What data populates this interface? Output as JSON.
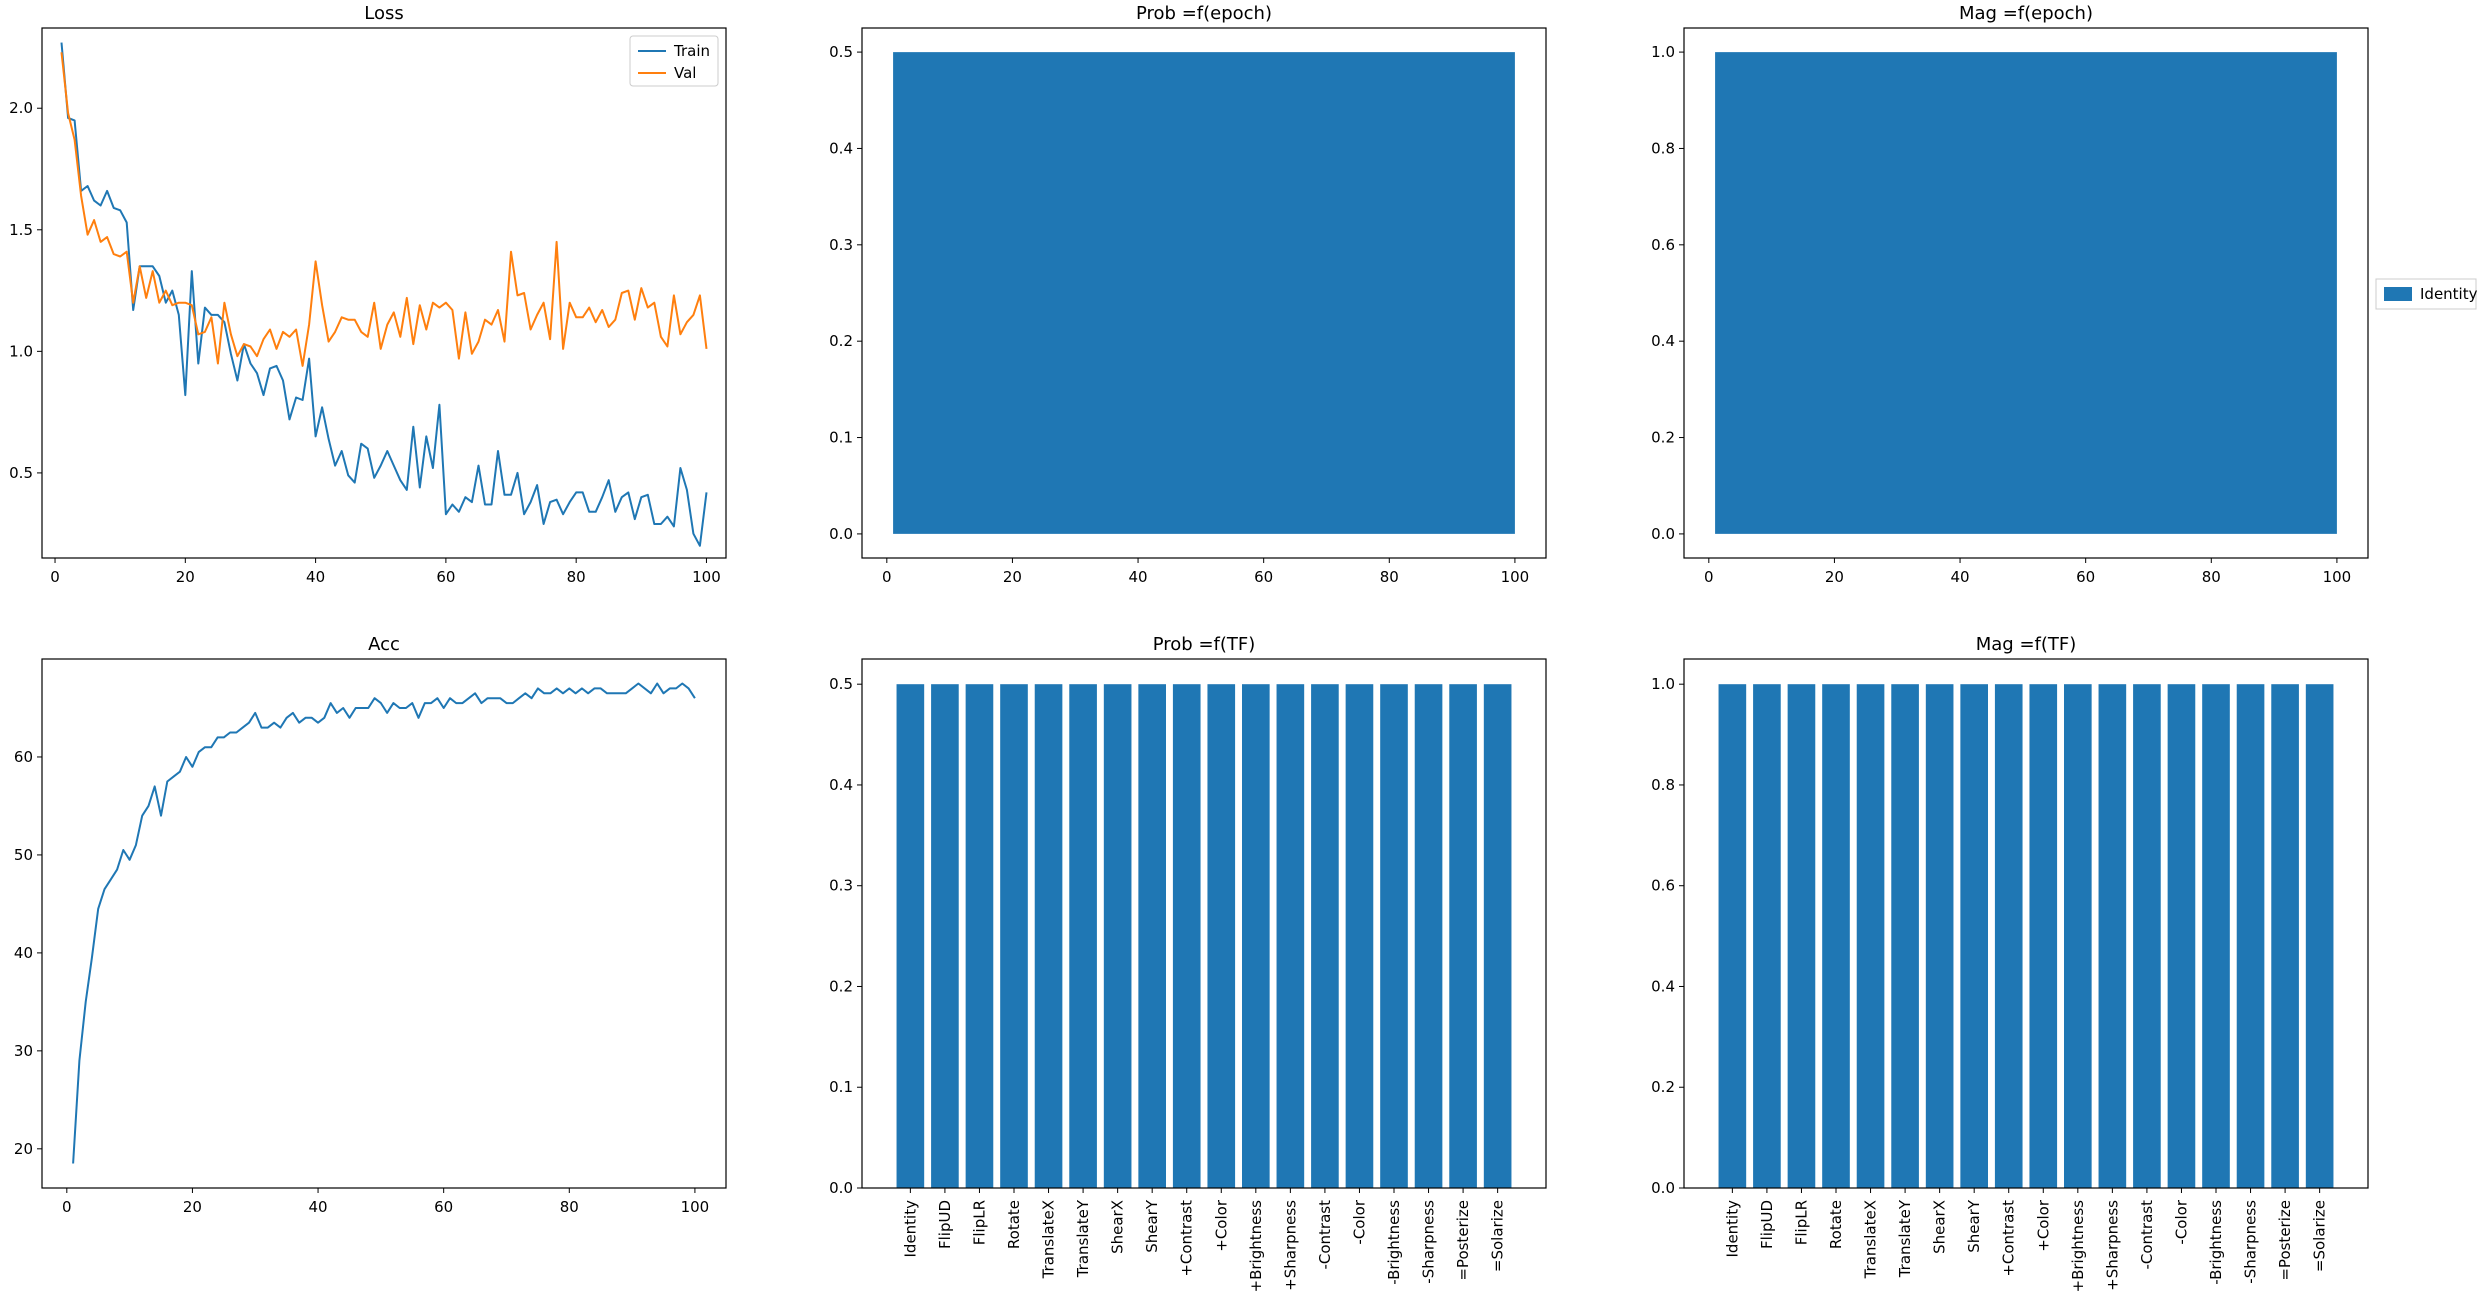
{
  "colors": {
    "blue": "#1f77b4",
    "orange": "#ff7f0e"
  },
  "legend_outside": {
    "label": "Identity",
    "color": "#1f77b4",
    "placement": "right"
  },
  "chart_data": [
    {
      "id": "loss",
      "type": "line",
      "title": "Loss",
      "xlim": [
        -2,
        103
      ],
      "ylim": [
        0.15,
        2.33
      ],
      "xticks": [
        0,
        20,
        40,
        60,
        80,
        100
      ],
      "yticks": [
        0.5,
        1.0,
        1.5,
        2.0
      ],
      "yformat": "fixed1",
      "legend": "top-right",
      "series": [
        {
          "name": "Train",
          "color": "#1f77b4",
          "x": [
            1,
            2,
            3,
            4,
            5,
            6,
            7,
            8,
            9,
            10,
            11,
            12,
            13,
            14,
            15,
            16,
            17,
            18,
            19,
            20,
            21,
            22,
            23,
            24,
            25,
            26,
            27,
            28,
            29,
            30,
            31,
            32,
            33,
            34,
            35,
            36,
            37,
            38,
            39,
            40,
            41,
            42,
            43,
            44,
            45,
            46,
            47,
            48,
            49,
            50,
            51,
            52,
            53,
            54,
            55,
            56,
            57,
            58,
            59,
            60,
            61,
            62,
            63,
            64,
            65,
            66,
            67,
            68,
            69,
            70,
            71,
            72,
            73,
            74,
            75,
            76,
            77,
            78,
            79,
            80,
            81,
            82,
            83,
            84,
            85,
            86,
            87,
            88,
            89,
            90,
            91,
            92,
            93,
            94,
            95,
            96,
            97,
            98,
            99,
            100
          ],
          "values": [
            2.27,
            1.96,
            1.95,
            1.66,
            1.68,
            1.62,
            1.6,
            1.66,
            1.59,
            1.58,
            1.53,
            1.17,
            1.35,
            1.35,
            1.35,
            1.31,
            1.2,
            1.25,
            1.15,
            0.82,
            1.33,
            0.95,
            1.18,
            1.15,
            1.15,
            1.12,
            0.99,
            0.88,
            1.03,
            0.95,
            0.91,
            0.82,
            0.93,
            0.94,
            0.88,
            0.72,
            0.81,
            0.8,
            0.97,
            0.65,
            0.77,
            0.64,
            0.53,
            0.59,
            0.49,
            0.46,
            0.62,
            0.6,
            0.48,
            0.53,
            0.59,
            0.53,
            0.47,
            0.43,
            0.69,
            0.44,
            0.65,
            0.52,
            0.78,
            0.33,
            0.37,
            0.34,
            0.4,
            0.38,
            0.53,
            0.37,
            0.37,
            0.59,
            0.41,
            0.41,
            0.5,
            0.33,
            0.38,
            0.45,
            0.29,
            0.38,
            0.39,
            0.33,
            0.38,
            0.42,
            0.42,
            0.34,
            0.34,
            0.4,
            0.47,
            0.34,
            0.4,
            0.42,
            0.31,
            0.4,
            0.41,
            0.29,
            0.29,
            0.32,
            0.28,
            0.52,
            0.43,
            0.25,
            0.2,
            0.42
          ]
        },
        {
          "name": "Val",
          "color": "#ff7f0e",
          "x": [
            1,
            2,
            3,
            4,
            5,
            6,
            7,
            8,
            9,
            10,
            11,
            12,
            13,
            14,
            15,
            16,
            17,
            18,
            19,
            20,
            21,
            22,
            23,
            24,
            25,
            26,
            27,
            28,
            29,
            30,
            31,
            32,
            33,
            34,
            35,
            36,
            37,
            38,
            39,
            40,
            41,
            42,
            43,
            44,
            45,
            46,
            47,
            48,
            49,
            50,
            51,
            52,
            53,
            54,
            55,
            56,
            57,
            58,
            59,
            60,
            61,
            62,
            63,
            64,
            65,
            66,
            67,
            68,
            69,
            70,
            71,
            72,
            73,
            74,
            75,
            76,
            77,
            78,
            79,
            80,
            81,
            82,
            83,
            84,
            85,
            86,
            87,
            88,
            89,
            90,
            91,
            92,
            93,
            94,
            95,
            96,
            97,
            98,
            99,
            100
          ],
          "values": [
            2.23,
            1.98,
            1.87,
            1.64,
            1.48,
            1.54,
            1.45,
            1.47,
            1.4,
            1.39,
            1.41,
            1.2,
            1.35,
            1.22,
            1.33,
            1.2,
            1.25,
            1.19,
            1.2,
            1.2,
            1.19,
            1.07,
            1.08,
            1.14,
            0.95,
            1.2,
            1.07,
            0.98,
            1.03,
            1.02,
            0.98,
            1.05,
            1.09,
            1.01,
            1.08,
            1.06,
            1.09,
            0.94,
            1.11,
            1.37,
            1.19,
            1.04,
            1.08,
            1.14,
            1.13,
            1.13,
            1.08,
            1.06,
            1.2,
            1.01,
            1.11,
            1.16,
            1.06,
            1.22,
            1.03,
            1.19,
            1.09,
            1.2,
            1.18,
            1.2,
            1.17,
            0.97,
            1.16,
            0.99,
            1.04,
            1.13,
            1.11,
            1.17,
            1.04,
            1.41,
            1.23,
            1.24,
            1.09,
            1.15,
            1.2,
            1.05,
            1.45,
            1.01,
            1.2,
            1.14,
            1.14,
            1.18,
            1.12,
            1.17,
            1.1,
            1.13,
            1.24,
            1.25,
            1.13,
            1.26,
            1.18,
            1.2,
            1.06,
            1.02,
            1.23,
            1.07,
            1.12,
            1.15,
            1.23,
            1.01
          ]
        }
      ]
    },
    {
      "id": "prob_epoch",
      "type": "area",
      "title": "Prob =f(epoch)",
      "xlim": [
        -3.95,
        104.95
      ],
      "ylim": [
        -0.025,
        0.525
      ],
      "xticks": [
        0,
        20,
        40,
        60,
        80,
        100
      ],
      "yticks": [
        0.0,
        0.1,
        0.2,
        0.3,
        0.4,
        0.5
      ],
      "yformat": "fixed1",
      "series": [
        {
          "name": "Identity",
          "color": "#1f77b4",
          "x": [
            1,
            100
          ],
          "values": [
            0.5,
            0.5
          ]
        }
      ]
    },
    {
      "id": "mag_epoch",
      "type": "area",
      "title": "Mag =f(epoch)",
      "xlim": [
        -3.95,
        104.95
      ],
      "ylim": [
        -0.05,
        1.05
      ],
      "xticks": [
        0,
        20,
        40,
        60,
        80,
        100
      ],
      "yticks": [
        0.0,
        0.2,
        0.4,
        0.6,
        0.8,
        1.0
      ],
      "yformat": "fixed1",
      "series": [
        {
          "name": "Identity",
          "color": "#1f77b4",
          "x": [
            1,
            100
          ],
          "values": [
            1.0,
            1.0
          ]
        }
      ]
    },
    {
      "id": "acc",
      "type": "line",
      "title": "Acc",
      "xlim": [
        -3.95,
        104.95
      ],
      "ylim": [
        16.0,
        70.0
      ],
      "xticks": [
        0,
        20,
        40,
        60,
        80,
        100
      ],
      "yticks": [
        20,
        30,
        40,
        50,
        60
      ],
      "yformat": "int",
      "series": [
        {
          "name": "",
          "color": "#1f77b4",
          "x": [
            1,
            2,
            3,
            4,
            5,
            6,
            7,
            8,
            9,
            10,
            11,
            12,
            13,
            14,
            15,
            16,
            17,
            18,
            19,
            20,
            21,
            22,
            23,
            24,
            25,
            26,
            27,
            28,
            29,
            30,
            31,
            32,
            33,
            34,
            35,
            36,
            37,
            38,
            39,
            40,
            41,
            42,
            43,
            44,
            45,
            46,
            47,
            48,
            49,
            50,
            51,
            52,
            53,
            54,
            55,
            56,
            57,
            58,
            59,
            60,
            61,
            62,
            63,
            64,
            65,
            66,
            67,
            68,
            69,
            70,
            71,
            72,
            73,
            74,
            75,
            76,
            77,
            78,
            79,
            80,
            81,
            82,
            83,
            84,
            85,
            86,
            87,
            88,
            89,
            90,
            91,
            92,
            93,
            94,
            95,
            96,
            97,
            98,
            99,
            100
          ],
          "values": [
            18.5,
            29,
            35,
            39.5,
            44.5,
            46.5,
            47.5,
            48.5,
            50.5,
            49.5,
            51,
            54,
            55,
            57,
            54,
            57.5,
            58,
            58.5,
            60,
            59,
            60.5,
            61,
            61,
            62,
            62,
            62.5,
            62.5,
            63,
            63.5,
            64.5,
            63,
            63,
            63.5,
            63,
            64,
            64.5,
            63.5,
            64,
            64,
            63.5,
            64,
            65.5,
            64.5,
            65,
            64,
            65,
            65,
            65,
            66,
            65.5,
            64.5,
            65.5,
            65,
            65,
            65.5,
            64,
            65.5,
            65.5,
            66,
            65,
            66,
            65.5,
            65.5,
            66,
            66.5,
            65.5,
            66,
            66,
            66,
            65.5,
            65.5,
            66,
            66.5,
            66,
            67,
            66.5,
            66.5,
            67,
            66.5,
            67,
            66.5,
            67,
            66.5,
            67,
            67,
            66.5,
            66.5,
            66.5,
            66.5,
            67,
            67.5,
            67,
            66.5,
            67.5,
            66.5,
            67,
            67,
            67.5,
            67,
            66
          ]
        }
      ]
    },
    {
      "id": "prob_tf",
      "type": "bar",
      "title": "Prob =f(TF)",
      "ylim": [
        0.0,
        0.525
      ],
      "yticks": [
        0.0,
        0.1,
        0.2,
        0.3,
        0.4,
        0.5
      ],
      "yformat": "fixed1",
      "categories": [
        "Identity",
        "FlipUD",
        "FlipLR",
        "Rotate",
        "TranslateX",
        "TranslateY",
        "ShearX",
        "ShearY",
        "+Contrast",
        "+Color",
        "+Brightness",
        "+Sharpness",
        "-Contrast",
        "-Color",
        "-Brightness",
        "-Sharpness",
        "=Posterize",
        "=Solarize"
      ],
      "values": [
        0.5,
        0.5,
        0.5,
        0.5,
        0.5,
        0.5,
        0.5,
        0.5,
        0.5,
        0.5,
        0.5,
        0.5,
        0.5,
        0.5,
        0.5,
        0.5,
        0.5,
        0.5
      ],
      "color": "#1f77b4"
    },
    {
      "id": "mag_tf",
      "type": "bar",
      "title": "Mag =f(TF)",
      "ylim": [
        0.0,
        1.05
      ],
      "yticks": [
        0.0,
        0.2,
        0.4,
        0.6,
        0.8,
        1.0
      ],
      "yformat": "fixed1",
      "categories": [
        "Identity",
        "FlipUD",
        "FlipLR",
        "Rotate",
        "TranslateX",
        "TranslateY",
        "ShearX",
        "ShearY",
        "+Contrast",
        "+Color",
        "+Brightness",
        "+Sharpness",
        "-Contrast",
        "-Color",
        "-Brightness",
        "-Sharpness",
        "=Posterize",
        "=Solarize"
      ],
      "values": [
        1.0,
        1.0,
        1.0,
        1.0,
        1.0,
        1.0,
        1.0,
        1.0,
        1.0,
        1.0,
        1.0,
        1.0,
        1.0,
        1.0,
        1.0,
        1.0,
        1.0,
        1.0
      ],
      "color": "#1f77b4"
    }
  ]
}
